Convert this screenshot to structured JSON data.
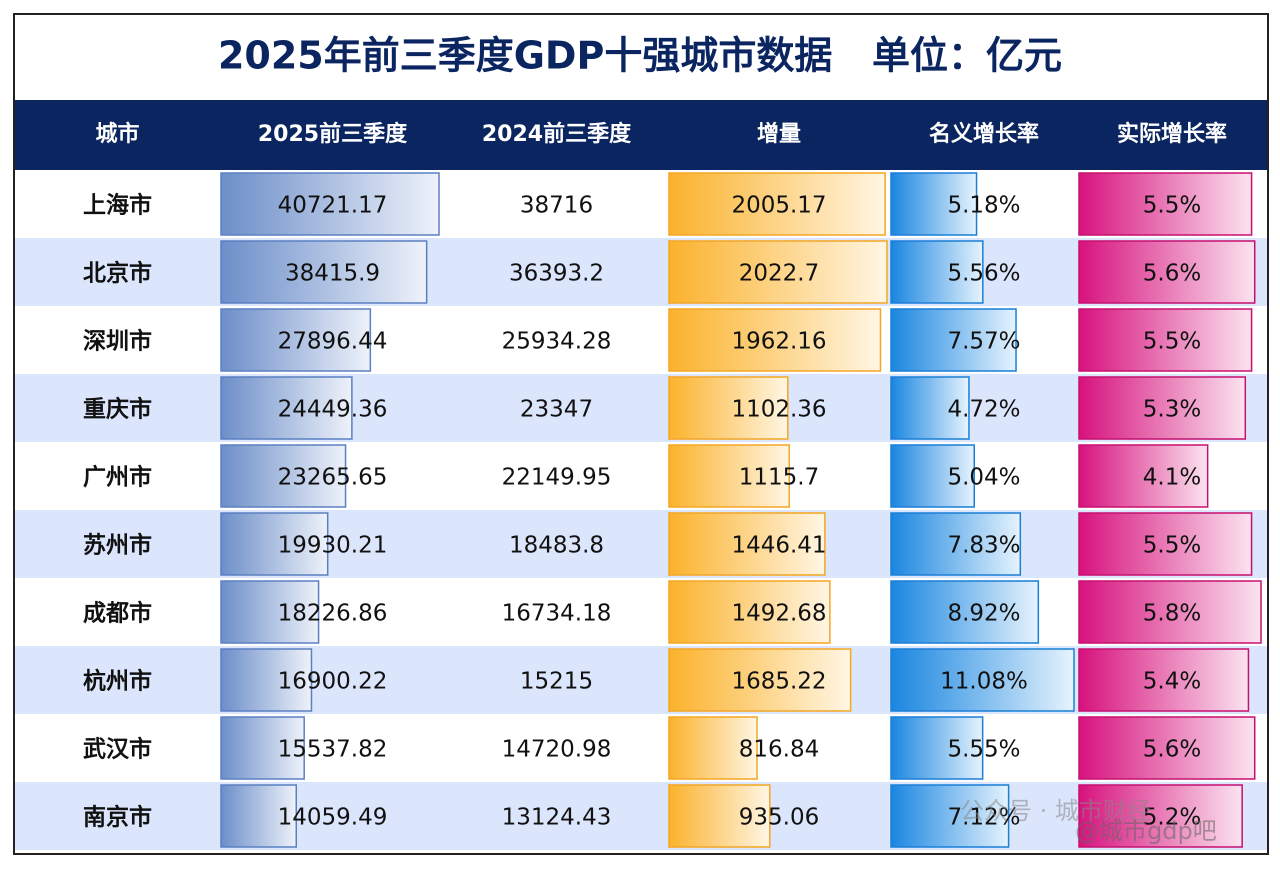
{
  "title": "2025年前三季度GDP十强城市数据   单位：亿元",
  "table": {
    "header": [
      "城市",
      "2025前三季度",
      "2024前三季度",
      "增量",
      "名义增长率",
      "实际增长率"
    ],
    "rows": [
      [
        "上海市",
        "40721.17",
        "38716",
        "2005.17",
        "5.18%",
        "5.5%"
      ],
      [
        "北京市",
        "38415.9",
        "36393.2",
        "2022.7",
        "5.56%",
        "5.6%"
      ],
      [
        "深圳市",
        "27896.44",
        "25934.28",
        "1962.16",
        "7.57%",
        "5.5%"
      ],
      [
        "重庆市",
        "24449.36",
        "23347",
        "1102.36",
        "4.72%",
        "5.3%"
      ],
      [
        "广州市",
        "23265.65",
        "22149.95",
        "1115.7",
        "5.04%",
        "4.1%"
      ],
      [
        "苏州市",
        "19930.21",
        "18483.8",
        "1446.41",
        "7.83%",
        "5.5%"
      ],
      [
        "成都市",
        "18226.86",
        "16734.18",
        "1492.68",
        "8.92%",
        "5.8%"
      ],
      [
        "杭州市",
        "16900.22",
        "15215",
        "1685.22",
        "11.08%",
        "5.4%"
      ],
      [
        "武汉市",
        "15537.82",
        "14720.98",
        "816.84",
        "5.55%",
        "5.6%"
      ],
      [
        "南京市",
        "14059.49",
        "13124.43",
        "935.06",
        "7.12%",
        "5.2%"
      ]
    ]
  },
  "watermark": [
    "公众号 · 城市财经",
    "@城市gdp吧"
  ]
}
